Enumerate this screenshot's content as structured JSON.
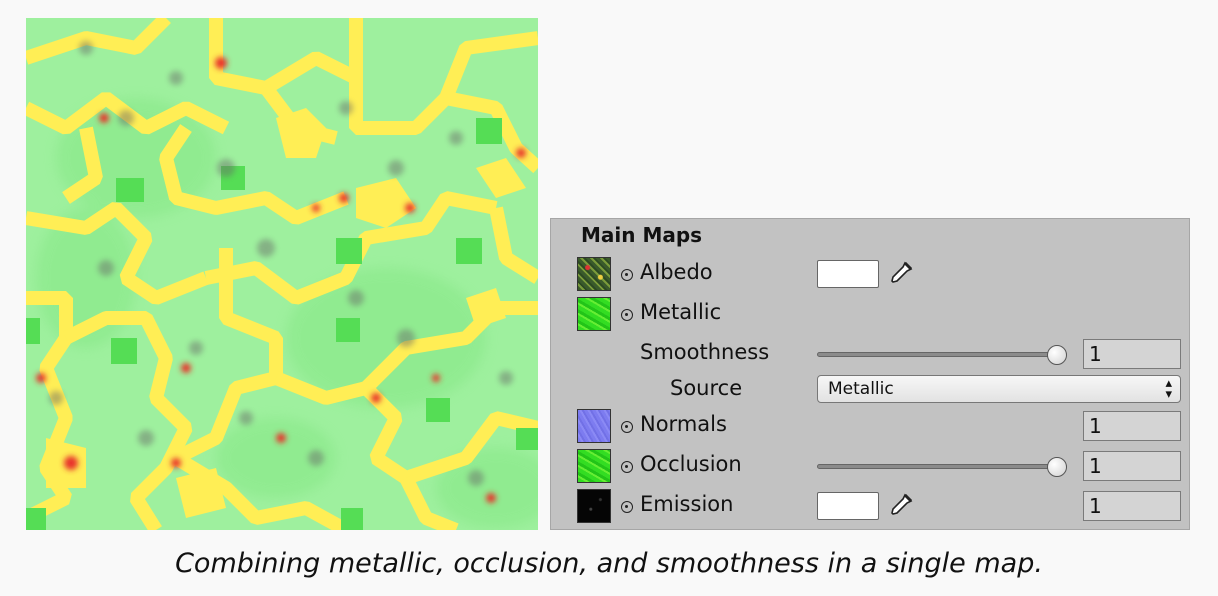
{
  "inspector": {
    "section_title": "Main Maps",
    "rows": {
      "albedo": {
        "label": "Albedo",
        "thumb_icon": "albedo-texture-thumbnail"
      },
      "metallic": {
        "label": "Metallic",
        "thumb_icon": "metallic-texture-thumbnail"
      },
      "smoothness": {
        "label": "Smoothness",
        "value": "1",
        "slider_fraction": 1.0
      },
      "source": {
        "label": "Source",
        "selected": "Metallic",
        "arrow_icon": "up-down-arrow-icon"
      },
      "normals": {
        "label": "Normals",
        "value": "1",
        "thumb_icon": "normal-map-thumbnail"
      },
      "occlusion": {
        "label": "Occlusion",
        "value": "1",
        "slider_fraction": 1.0
      },
      "emission": {
        "label": "Emission",
        "value": "1",
        "thumb_icon": "emission-texture-thumbnail"
      }
    },
    "colors": {
      "panel_bg": "#c2c2c2",
      "swatch": "#ffffff",
      "map_green": "#9ef09e",
      "map_yellow": "#ffee55",
      "map_red": "#e8322a"
    },
    "icons": [
      "texture-slot-icon",
      "eyedropper-icon"
    ]
  },
  "caption": "Combining metallic, occlusion, and smoothness in a single map."
}
